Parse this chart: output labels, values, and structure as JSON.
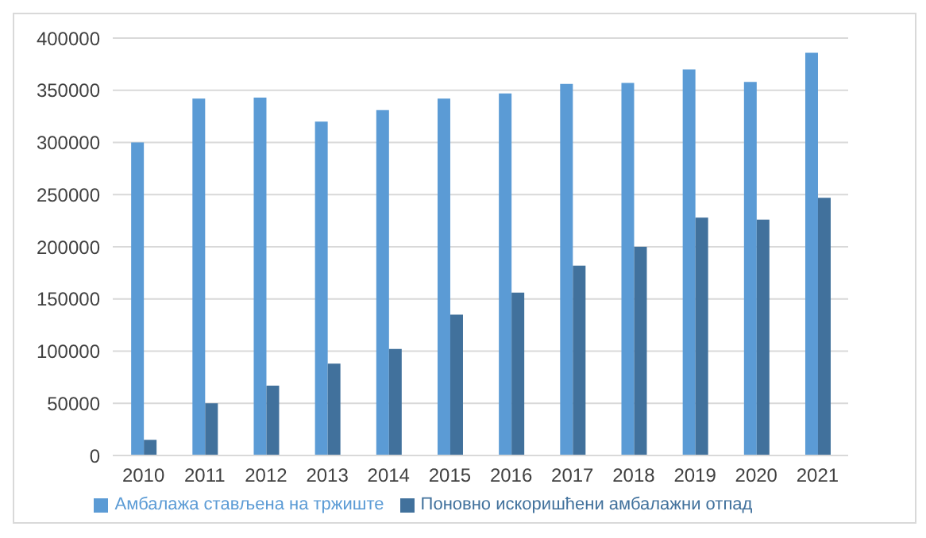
{
  "chart_data": {
    "type": "bar",
    "categories": [
      "2010",
      "2011",
      "2012",
      "2013",
      "2014",
      "2015",
      "2016",
      "2017",
      "2018",
      "2019",
      "2020",
      "2021"
    ],
    "series": [
      {
        "name": "Амбалажа стављена на тржиште",
        "color": "#5b9bd5",
        "values": [
          300000,
          342000,
          343000,
          320000,
          331000,
          342000,
          347000,
          356000,
          357000,
          370000,
          358000,
          386000
        ]
      },
      {
        "name": "Поновно искоришћени амбалажни отпад",
        "color": "#41719c",
        "values": [
          15000,
          50000,
          67000,
          88000,
          102000,
          135000,
          156000,
          182000,
          200000,
          228000,
          226000,
          247000
        ]
      }
    ],
    "ylim": [
      0,
      400000
    ],
    "yticks": [
      0,
      50000,
      100000,
      150000,
      200000,
      250000,
      300000,
      350000,
      400000
    ],
    "grid": "y",
    "legend": "bottom"
  }
}
